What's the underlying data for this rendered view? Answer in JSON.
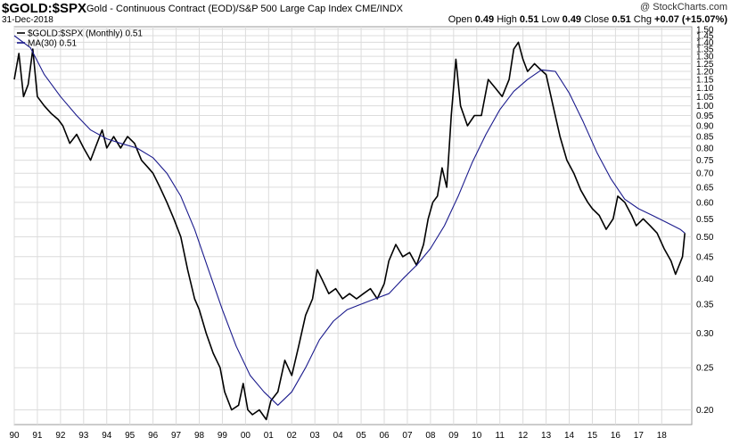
{
  "header": {
    "symbol": "$GOLD:$SPX",
    "description": "Gold - Continuous Contract (EOD)/S&P 500 Large Cap Index CME/INDX",
    "date": "31-Dec-2018",
    "brand": "@ StockCharts.com",
    "open_label": "Open",
    "open_value": "0.49",
    "high_label": "High",
    "high_value": "0.51",
    "low_label": "Low",
    "low_value": "0.49",
    "close_label": "Close",
    "close_value": "0.51",
    "chg_label": "Chg",
    "chg_value": "+0.07 (+15.07%)"
  },
  "chart_data": {
    "type": "line",
    "title": "",
    "xlabel": "",
    "ylabel": "",
    "y_scale": "log",
    "ylim": [
      0.185,
      1.52
    ],
    "xlim": [
      1990,
      2019.3
    ],
    "grid": true,
    "legend_position": "top-left",
    "x_ticks": [
      "90",
      "91",
      "92",
      "93",
      "94",
      "95",
      "96",
      "97",
      "98",
      "99",
      "00",
      "01",
      "02",
      "03",
      "04",
      "05",
      "06",
      "07",
      "08",
      "09",
      "10",
      "11",
      "12",
      "13",
      "14",
      "15",
      "16",
      "17",
      "18"
    ],
    "y_ticks": [
      "1.50",
      "1.45",
      "1.40",
      "1.35",
      "1.30",
      "1.25",
      "1.20",
      "1.15",
      "1.10",
      "1.05",
      "1.00",
      "0.95",
      "0.90",
      "0.85",
      "0.80",
      "0.75",
      "0.70",
      "0.65",
      "0.60",
      "0.55",
      "0.50",
      "0.45",
      "0.40",
      "0.35",
      "0.30",
      "0.25",
      "0.20"
    ],
    "series": [
      {
        "name": "$GOLD:$SPX (Monthly) 0.51",
        "color": "#000000",
        "points": [
          [
            1990.0,
            1.15
          ],
          [
            1990.2,
            1.32
          ],
          [
            1990.4,
            1.05
          ],
          [
            1990.6,
            1.12
          ],
          [
            1990.8,
            1.35
          ],
          [
            1991.0,
            1.05
          ],
          [
            1991.3,
            1.0
          ],
          [
            1991.6,
            0.96
          ],
          [
            1991.9,
            0.93
          ],
          [
            1992.1,
            0.9
          ],
          [
            1992.4,
            0.82
          ],
          [
            1992.7,
            0.86
          ],
          [
            1993.0,
            0.8
          ],
          [
            1993.3,
            0.75
          ],
          [
            1993.5,
            0.8
          ],
          [
            1993.8,
            0.88
          ],
          [
            1994.0,
            0.8
          ],
          [
            1994.3,
            0.85
          ],
          [
            1994.6,
            0.8
          ],
          [
            1994.9,
            0.85
          ],
          [
            1995.2,
            0.82
          ],
          [
            1995.5,
            0.75
          ],
          [
            1995.8,
            0.72
          ],
          [
            1996.0,
            0.7
          ],
          [
            1996.3,
            0.65
          ],
          [
            1996.6,
            0.6
          ],
          [
            1996.9,
            0.55
          ],
          [
            1997.2,
            0.5
          ],
          [
            1997.5,
            0.42
          ],
          [
            1997.8,
            0.36
          ],
          [
            1998.0,
            0.34
          ],
          [
            1998.3,
            0.3
          ],
          [
            1998.6,
            0.27
          ],
          [
            1998.9,
            0.25
          ],
          [
            1999.1,
            0.22
          ],
          [
            1999.4,
            0.2
          ],
          [
            1999.7,
            0.205
          ],
          [
            1999.9,
            0.23
          ],
          [
            2000.1,
            0.2
          ],
          [
            2000.3,
            0.195
          ],
          [
            2000.6,
            0.2
          ],
          [
            2000.9,
            0.19
          ],
          [
            2001.1,
            0.21
          ],
          [
            2001.4,
            0.22
          ],
          [
            2001.7,
            0.26
          ],
          [
            2002.0,
            0.24
          ],
          [
            2002.3,
            0.28
          ],
          [
            2002.6,
            0.33
          ],
          [
            2002.9,
            0.36
          ],
          [
            2003.1,
            0.42
          ],
          [
            2003.3,
            0.4
          ],
          [
            2003.6,
            0.37
          ],
          [
            2003.9,
            0.38
          ],
          [
            2004.2,
            0.36
          ],
          [
            2004.5,
            0.37
          ],
          [
            2004.8,
            0.36
          ],
          [
            2005.1,
            0.37
          ],
          [
            2005.4,
            0.38
          ],
          [
            2005.7,
            0.36
          ],
          [
            2006.0,
            0.39
          ],
          [
            2006.2,
            0.44
          ],
          [
            2006.5,
            0.48
          ],
          [
            2006.8,
            0.45
          ],
          [
            2007.1,
            0.46
          ],
          [
            2007.4,
            0.43
          ],
          [
            2007.7,
            0.48
          ],
          [
            2007.9,
            0.55
          ],
          [
            2008.1,
            0.6
          ],
          [
            2008.3,
            0.62
          ],
          [
            2008.5,
            0.72
          ],
          [
            2008.7,
            0.65
          ],
          [
            2008.9,
            0.95
          ],
          [
            2009.1,
            1.28
          ],
          [
            2009.3,
            1.0
          ],
          [
            2009.6,
            0.9
          ],
          [
            2009.9,
            0.95
          ],
          [
            2010.2,
            0.95
          ],
          [
            2010.5,
            1.15
          ],
          [
            2010.8,
            1.1
          ],
          [
            2011.1,
            1.05
          ],
          [
            2011.4,
            1.15
          ],
          [
            2011.6,
            1.35
          ],
          [
            2011.8,
            1.4
          ],
          [
            2012.0,
            1.28
          ],
          [
            2012.2,
            1.2
          ],
          [
            2012.5,
            1.25
          ],
          [
            2012.7,
            1.22
          ],
          [
            2013.0,
            1.18
          ],
          [
            2013.3,
            1.0
          ],
          [
            2013.6,
            0.85
          ],
          [
            2013.9,
            0.75
          ],
          [
            2014.2,
            0.7
          ],
          [
            2014.5,
            0.64
          ],
          [
            2014.8,
            0.6
          ],
          [
            2015.0,
            0.58
          ],
          [
            2015.3,
            0.56
          ],
          [
            2015.6,
            0.52
          ],
          [
            2015.9,
            0.55
          ],
          [
            2016.1,
            0.62
          ],
          [
            2016.4,
            0.6
          ],
          [
            2016.7,
            0.56
          ],
          [
            2016.9,
            0.53
          ],
          [
            2017.2,
            0.55
          ],
          [
            2017.5,
            0.53
          ],
          [
            2017.8,
            0.51
          ],
          [
            2018.1,
            0.47
          ],
          [
            2018.4,
            0.44
          ],
          [
            2018.6,
            0.41
          ],
          [
            2018.9,
            0.45
          ],
          [
            2019.0,
            0.51
          ]
        ]
      },
      {
        "name": "MA(30) 0.51",
        "color": "#1a1a8c",
        "points": [
          [
            1990.0,
            1.45
          ],
          [
            1990.7,
            1.36
          ],
          [
            1991.3,
            1.18
          ],
          [
            1992.0,
            1.05
          ],
          [
            1992.7,
            0.95
          ],
          [
            1993.3,
            0.88
          ],
          [
            1994.0,
            0.84
          ],
          [
            1994.6,
            0.82
          ],
          [
            1995.3,
            0.8
          ],
          [
            1996.0,
            0.76
          ],
          [
            1996.6,
            0.7
          ],
          [
            1997.2,
            0.62
          ],
          [
            1997.8,
            0.52
          ],
          [
            1998.4,
            0.42
          ],
          [
            1999.0,
            0.34
          ],
          [
            1999.6,
            0.28
          ],
          [
            2000.2,
            0.24
          ],
          [
            2000.8,
            0.22
          ],
          [
            2001.4,
            0.205
          ],
          [
            2002.0,
            0.22
          ],
          [
            2002.6,
            0.25
          ],
          [
            2003.2,
            0.29
          ],
          [
            2003.8,
            0.32
          ],
          [
            2004.4,
            0.34
          ],
          [
            2005.0,
            0.35
          ],
          [
            2005.6,
            0.36
          ],
          [
            2006.2,
            0.37
          ],
          [
            2006.8,
            0.4
          ],
          [
            2007.4,
            0.43
          ],
          [
            2008.0,
            0.47
          ],
          [
            2008.6,
            0.53
          ],
          [
            2009.2,
            0.62
          ],
          [
            2009.8,
            0.74
          ],
          [
            2010.4,
            0.86
          ],
          [
            2011.0,
            0.98
          ],
          [
            2011.6,
            1.08
          ],
          [
            2012.2,
            1.15
          ],
          [
            2012.8,
            1.21
          ],
          [
            2013.4,
            1.2
          ],
          [
            2014.0,
            1.07
          ],
          [
            2014.6,
            0.92
          ],
          [
            2015.2,
            0.78
          ],
          [
            2015.8,
            0.68
          ],
          [
            2016.4,
            0.61
          ],
          [
            2017.0,
            0.58
          ],
          [
            2017.6,
            0.56
          ],
          [
            2018.2,
            0.54
          ],
          [
            2018.8,
            0.52
          ],
          [
            2019.0,
            0.51
          ]
        ]
      }
    ]
  }
}
